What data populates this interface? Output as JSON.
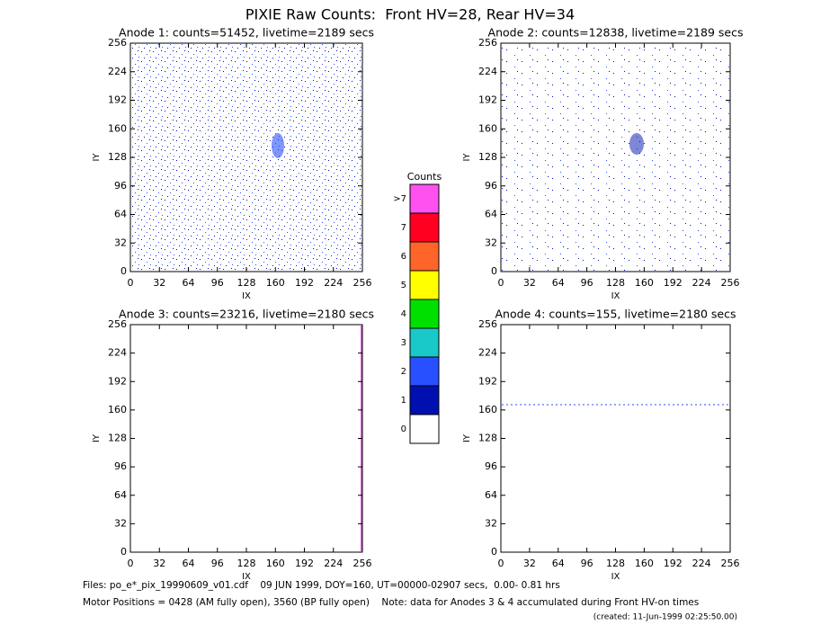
{
  "title": "PIXIE Raw Counts:  Front HV=28, Rear HV=34",
  "chart_data": [
    {
      "type": "heatmap",
      "title": "Anode 1: counts=51452, livetime=2189 secs",
      "xlabel": "IX",
      "ylabel": "IY",
      "xlim": [
        0,
        256
      ],
      "ylim": [
        0,
        256
      ],
      "xticks": [
        0,
        32,
        64,
        96,
        128,
        160,
        192,
        224,
        256
      ],
      "yticks": [
        0,
        32,
        64,
        96,
        128,
        160,
        192,
        224,
        256
      ]
    },
    {
      "type": "heatmap",
      "title": "Anode 2: counts=12838, livetime=2189 secs",
      "xlabel": "IX",
      "ylabel": "IY",
      "xlim": [
        0,
        256
      ],
      "ylim": [
        0,
        256
      ],
      "xticks": [
        0,
        32,
        64,
        96,
        128,
        160,
        192,
        224,
        256
      ],
      "yticks": [
        0,
        32,
        64,
        96,
        128,
        160,
        192,
        224,
        256
      ]
    },
    {
      "type": "heatmap",
      "title": "Anode 3: counts=23216, livetime=2180 secs",
      "xlabel": "IX",
      "ylabel": "IY",
      "xlim": [
        0,
        256
      ],
      "ylim": [
        0,
        256
      ],
      "xticks": [
        0,
        32,
        64,
        96,
        128,
        160,
        192,
        224,
        256
      ],
      "yticks": [
        0,
        32,
        64,
        96,
        128,
        160,
        192,
        224,
        256
      ]
    },
    {
      "type": "heatmap",
      "title": "Anode 4: counts=155, livetime=2180 secs",
      "xlabel": "IX",
      "ylabel": "IY",
      "xlim": [
        0,
        256
      ],
      "ylim": [
        0,
        256
      ],
      "xticks": [
        0,
        32,
        64,
        96,
        128,
        160,
        192,
        224,
        256
      ],
      "yticks": [
        0,
        32,
        64,
        96,
        128,
        160,
        192,
        224,
        256
      ]
    }
  ],
  "colorbar": {
    "title": "Counts",
    "labels": [
      "0",
      "1",
      "2",
      "3",
      "4",
      "5",
      "6",
      "7",
      ">7"
    ],
    "colors": [
      "#ffffff",
      "#0010b0",
      "#2850ff",
      "#19c8c8",
      "#00e000",
      "#ffff00",
      "#ff6428",
      "#ff0020",
      "#ff50f0"
    ]
  },
  "footer": {
    "files": "Files: po_e*_pix_19990609_v01.cdf    09 JUN 1999, DOY=160, UT=00000-02907 secs,  0.00- 0.81 hrs",
    "motor": "Motor Positions = 0428 (AM fully open), 3560 (BP fully open)    Note: data for Anodes 3 & 4 accumulated during Front HV-on times",
    "created": "(created: 11-Jun-1999 02:25:50.00)"
  }
}
